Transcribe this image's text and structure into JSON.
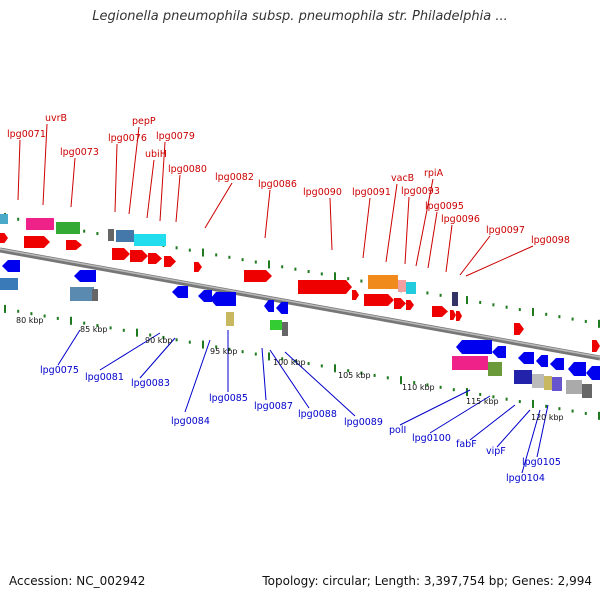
{
  "title": "Legionella pneumophila subsp. pneumophila str. Philadelphia ...",
  "footer": {
    "accession": "Accession: NC_002942",
    "summary": "Topology: circular; Length: 3,397,754 bp; Genes: 2,994"
  },
  "colors": {
    "forward_gene": "#ee0000",
    "reverse_gene": "#0000ee",
    "top_label": "#cc0000",
    "bottom_label": "#0000cc",
    "backbone": "#888888",
    "tick": "#228b22"
  },
  "scale_labels": [
    "80 kbp",
    "85 kbp",
    "90 kbp",
    "95 kbp",
    "100 kbp",
    "105 kbp",
    "110 kbp",
    "115 kbp",
    "120 kbp"
  ],
  "top_labels": [
    "lpg0071",
    "uvrB",
    "lpg0073",
    "lpg0076",
    "pepP",
    "ubiH",
    "lpg0079",
    "lpg0080",
    "lpg0082",
    "lpg0086",
    "lpg0090",
    "lpg0091",
    "vacB",
    "lpg0093",
    "rpiA",
    "lpg0095",
    "lpg0096",
    "lpg0097",
    "lpg0098"
  ],
  "bottom_labels": [
    "lpg0075",
    "lpg0081",
    "lpg0083",
    "lpg0084",
    "lpg0085",
    "lpg0087",
    "lpg0088",
    "lpg0089",
    "polI",
    "lpg0100",
    "fabF",
    "vipF",
    "lpg0105",
    "lpg0104"
  ]
}
